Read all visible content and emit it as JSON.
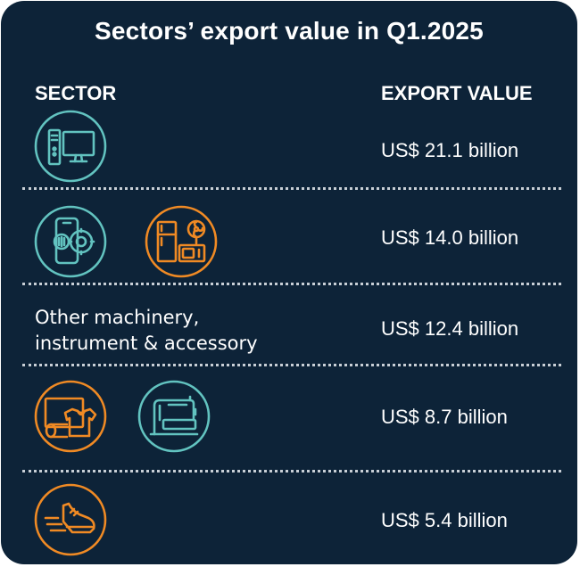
{
  "title": "Sectors’ export value in Q1.2025",
  "columns": {
    "sector": "SECTOR",
    "value": "EXPORT VALUE"
  },
  "rows": [
    {
      "icons": [
        "computer-icon"
      ],
      "value": "US$ 21.1 billion"
    },
    {
      "icons": [
        "phone-components-icon",
        "home-appliances-icon"
      ],
      "value": "US$ 14.0 billion"
    },
    {
      "sector_lines": [
        "Other machinery,",
        "instrument & accessory"
      ],
      "value": "US$ 12.4 billion"
    },
    {
      "icons": [
        "textile-garment-icon",
        "sewing-machine-icon"
      ],
      "value": "US$ 8.7 billion"
    },
    {
      "icons": [
        "footwear-icon"
      ],
      "value": "US$ 5.4 billion"
    }
  ],
  "colors": {
    "background": "#0d2338",
    "teal": "#62c3c0",
    "orange": "#f08a24",
    "text": "#ffffff"
  },
  "chart_data": {
    "type": "table",
    "title": "Sectors’ export value in Q1.2025",
    "columns": [
      "SECTOR",
      "EXPORT VALUE"
    ],
    "unit": "US$ billion",
    "categories": [
      "computer-icon",
      "phone-components-icon / home-appliances-icon",
      "Other machinery, instrument & accessory",
      "textile-garment-icon / sewing-machine-icon",
      "footwear-icon"
    ],
    "values": [
      21.1,
      14.0,
      12.4,
      8.7,
      5.4
    ]
  }
}
